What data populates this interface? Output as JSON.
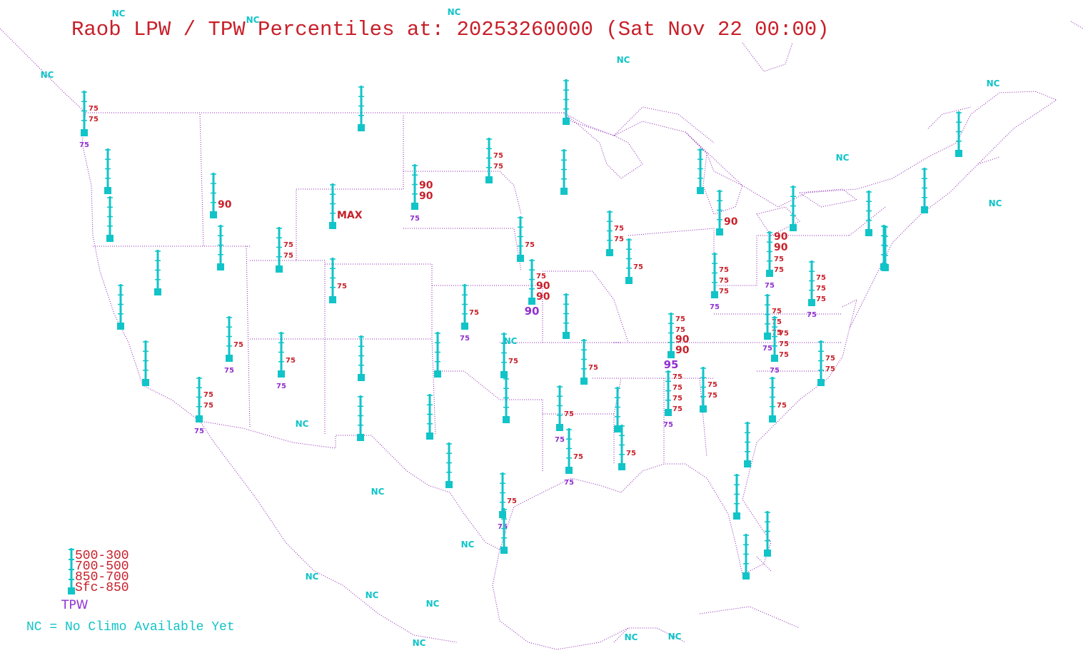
{
  "title": "Raob LPW / TPW Percentiles at: 20253260000 (Sat Nov 22 00:00)",
  "colors": {
    "title": "#c8202a",
    "station": "#11c4c8",
    "percentile": "#c8202a",
    "tpw": "#9030d0",
    "border": "#8a1fb0"
  },
  "legend": {
    "layers": [
      "500-300",
      "700-500",
      "850-700",
      "Sfc-850"
    ],
    "tpw_label": "TPW",
    "nc_note": "NC = No Climo Available Yet"
  },
  "nc_label": "NC",
  "stations": [
    {
      "id": "s1",
      "labels": [
        {
          "t": "75",
          "c": "r"
        },
        {
          "t": "75",
          "c": "r"
        }
      ],
      "tpw": "75"
    },
    {
      "id": "s2",
      "labels": [],
      "tpw": ""
    },
    {
      "id": "s3",
      "labels": [],
      "tpw": ""
    },
    {
      "id": "s4",
      "labels": [],
      "tpw": ""
    },
    {
      "id": "s5",
      "labels": [
        {
          "t": "90",
          "c": "R"
        }
      ],
      "tpw": ""
    },
    {
      "id": "s6",
      "labels": [],
      "tpw": ""
    },
    {
      "id": "s7",
      "labels": [],
      "tpw": ""
    },
    {
      "id": "s8",
      "labels": [],
      "tpw": ""
    },
    {
      "id": "s9",
      "labels": [
        {
          "t": "MAX",
          "c": "R"
        }
      ],
      "tpw": ""
    },
    {
      "id": "s10",
      "labels": [
        {
          "t": "75",
          "c": "r"
        },
        {
          "t": "75",
          "c": "r"
        }
      ],
      "tpw": ""
    },
    {
      "id": "s11",
      "labels": [
        {
          "t": "75",
          "c": "r"
        }
      ],
      "tpw": ""
    },
    {
      "id": "s12",
      "labels": [
        {
          "t": "75",
          "c": "r"
        }
      ],
      "tpw": "75"
    },
    {
      "id": "s13",
      "labels": [
        {
          "t": "75",
          "c": "r"
        }
      ],
      "tpw": "75"
    },
    {
      "id": "s14",
      "labels": [],
      "tpw": ""
    },
    {
      "id": "s15",
      "labels": [
        {
          "t": "75",
          "c": "r"
        },
        {
          "t": "75",
          "c": "r"
        }
      ],
      "tpw": "75"
    },
    {
      "id": "s16",
      "labels": [],
      "tpw": ""
    },
    {
      "id": "s17",
      "labels": [],
      "tpw": ""
    },
    {
      "id": "s18",
      "labels": [
        {
          "t": "90",
          "c": "R"
        },
        {
          "t": "90",
          "c": "R"
        }
      ],
      "tpw": "75"
    },
    {
      "id": "s19",
      "labels": [
        {
          "t": "75",
          "c": "r"
        },
        {
          "t": "75",
          "c": "r"
        }
      ],
      "tpw": ""
    },
    {
      "id": "s20",
      "labels": [],
      "tpw": ""
    },
    {
      "id": "s21",
      "labels": [],
      "tpw": ""
    },
    {
      "id": "s22",
      "labels": [
        {
          "t": "75",
          "c": "r"
        }
      ],
      "tpw": ""
    },
    {
      "id": "s23",
      "labels": [
        {
          "t": "75",
          "c": "r"
        },
        {
          "t": "90",
          "c": "R"
        },
        {
          "t": "90",
          "c": "R"
        }
      ],
      "tpw": "90"
    },
    {
      "id": "s24",
      "labels": [
        {
          "t": "75",
          "c": "r"
        }
      ],
      "tpw": "75"
    },
    {
      "id": "s25",
      "labels": [],
      "tpw": ""
    },
    {
      "id": "s26",
      "labels": [],
      "tpw": ""
    },
    {
      "id": "s27",
      "labels": [
        {
          "t": "75",
          "c": "r"
        }
      ],
      "tpw": ""
    },
    {
      "id": "s28",
      "labels": [],
      "tpw": ""
    },
    {
      "id": "s29",
      "labels": [
        {
          "t": "75",
          "c": "r"
        }
      ],
      "tpw": "75"
    },
    {
      "id": "s30",
      "labels": [
        {
          "t": "75",
          "c": "r"
        }
      ],
      "tpw": "75"
    },
    {
      "id": "s31",
      "labels": [
        {
          "t": "75",
          "c": "r"
        }
      ],
      "tpw": "75"
    },
    {
      "id": "s32",
      "labels": [
        {
          "t": "75",
          "c": "r"
        },
        {
          "t": "75",
          "c": "r"
        }
      ],
      "tpw": ""
    },
    {
      "id": "s33",
      "labels": [
        {
          "t": "75",
          "c": "r"
        }
      ],
      "tpw": ""
    },
    {
      "id": "s34",
      "labels": [],
      "tpw": ""
    },
    {
      "id": "s35",
      "labels": [],
      "tpw": ""
    },
    {
      "id": "s36",
      "labels": [
        {
          "t": "75",
          "c": "r"
        }
      ],
      "tpw": ""
    },
    {
      "id": "s37",
      "labels": [
        {
          "t": "75",
          "c": "r"
        },
        {
          "t": "75",
          "c": "r"
        },
        {
          "t": "90",
          "c": "R"
        },
        {
          "t": "90",
          "c": "R"
        }
      ],
      "tpw": "95"
    },
    {
      "id": "s38",
      "labels": [
        {
          "t": "75",
          "c": "r"
        },
        {
          "t": "75",
          "c": "r"
        },
        {
          "t": "75",
          "c": "r"
        },
        {
          "t": "75",
          "c": "r"
        }
      ],
      "tpw": "75"
    },
    {
      "id": "s39",
      "labels": [
        {
          "t": "75",
          "c": "r"
        },
        {
          "t": "75",
          "c": "r"
        }
      ],
      "tpw": ""
    },
    {
      "id": "s40",
      "labels": [],
      "tpw": ""
    },
    {
      "id": "s41",
      "labels": [
        {
          "t": "90",
          "c": "R"
        }
      ],
      "tpw": ""
    },
    {
      "id": "s42",
      "labels": [
        {
          "t": "75",
          "c": "r"
        },
        {
          "t": "75",
          "c": "r"
        },
        {
          "t": "75",
          "c": "r"
        }
      ],
      "tpw": "75"
    },
    {
      "id": "s43",
      "labels": [
        {
          "t": "90",
          "c": "R"
        },
        {
          "t": "90",
          "c": "R"
        },
        {
          "t": "75",
          "c": "r"
        },
        {
          "t": "75",
          "c": "r"
        }
      ],
      "tpw": "75"
    },
    {
      "id": "s44",
      "labels": [],
      "tpw": ""
    },
    {
      "id": "s45",
      "labels": [
        {
          "t": "75",
          "c": "r"
        },
        {
          "t": "75",
          "c": "r"
        },
        {
          "t": "75",
          "c": "r"
        }
      ],
      "tpw": "75"
    },
    {
      "id": "s46",
      "labels": [
        {
          "t": "75",
          "c": "r"
        },
        {
          "t": "75",
          "c": "r"
        },
        {
          "t": "75",
          "c": "r"
        }
      ],
      "tpw": "75"
    },
    {
      "id": "s47",
      "labels": [
        {
          "t": "75",
          "c": "r"
        },
        {
          "t": "75",
          "c": "r"
        },
        {
          "t": "75",
          "c": "r"
        }
      ],
      "tpw": "75"
    },
    {
      "id": "s48",
      "labels": [
        {
          "t": "75",
          "c": "r"
        }
      ],
      "tpw": ""
    },
    {
      "id": "s49",
      "labels": [
        {
          "t": "75",
          "c": "r"
        },
        {
          "t": "75",
          "c": "r"
        }
      ],
      "tpw": ""
    },
    {
      "id": "s50",
      "labels": [],
      "tpw": ""
    },
    {
      "id": "s51",
      "labels": [],
      "tpw": ""
    },
    {
      "id": "s52",
      "labels": [],
      "tpw": ""
    },
    {
      "id": "s53",
      "labels": [],
      "tpw": ""
    },
    {
      "id": "s54",
      "labels": [],
      "tpw": ""
    },
    {
      "id": "s55",
      "labels": [],
      "tpw": ""
    },
    {
      "id": "s56",
      "labels": [],
      "tpw": ""
    },
    {
      "id": "s57",
      "labels": [],
      "tpw": ""
    },
    {
      "id": "s58",
      "labels": [
        {
          "t": "75",
          "c": "r"
        }
      ],
      "tpw": ""
    },
    {
      "id": "s59",
      "labels": [],
      "tpw": ""
    },
    {
      "id": "s60",
      "labels": [],
      "tpw": ""
    },
    {
      "id": "s61",
      "labels": [],
      "tpw": ""
    }
  ]
}
